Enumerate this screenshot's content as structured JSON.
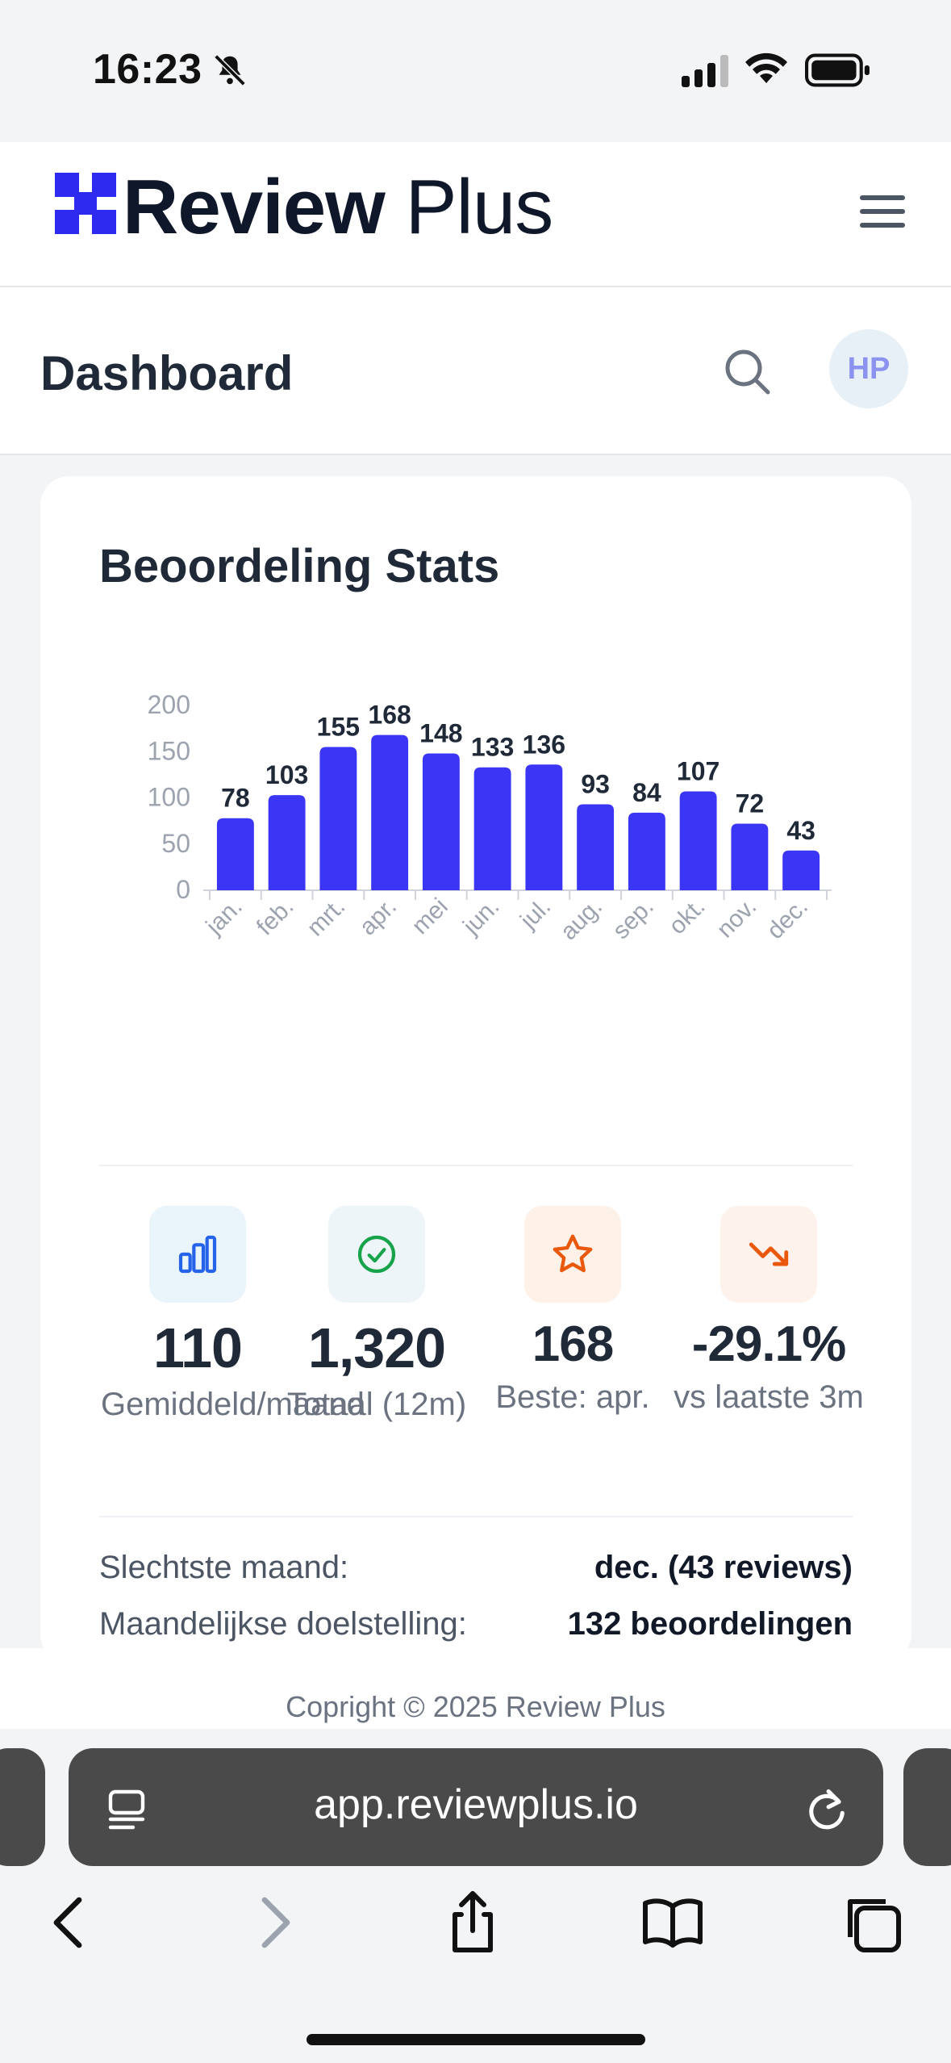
{
  "status_bar": {
    "time": "16:23"
  },
  "header": {
    "logo_bold": "Review",
    "logo_light": " Plus"
  },
  "page": {
    "title": "Dashboard",
    "avatar_initials": "HP"
  },
  "card": {
    "title": "Beoordeling Stats",
    "stats": [
      {
        "icon": "bar-chart-icon",
        "value": "110",
        "label": "Gemiddeld/maand"
      },
      {
        "icon": "check-circle-icon",
        "value": "1,320",
        "label": "Totaal (12m)"
      },
      {
        "icon": "star-icon",
        "value": "168",
        "label": "Beste: apr."
      },
      {
        "icon": "trend-down-icon",
        "value": "-29.1%",
        "label": "vs laatste 3m"
      }
    ],
    "summary": [
      {
        "key": "Slechtste maand:",
        "value": "dec. (43 reviews)"
      },
      {
        "key": "Maandelijkse doelstelling:",
        "value": "132 beoordelingen"
      }
    ]
  },
  "chart_data": {
    "type": "bar",
    "categories": [
      "jan.",
      "feb.",
      "mrt.",
      "apr.",
      "mei",
      "jun.",
      "jul.",
      "aug.",
      "sep.",
      "okt.",
      "nov.",
      "dec."
    ],
    "values": [
      78,
      103,
      155,
      168,
      148,
      133,
      136,
      93,
      84,
      107,
      72,
      43
    ],
    "ylim": [
      0,
      200
    ],
    "yticks": [
      0,
      50,
      100,
      150,
      200
    ],
    "bar_color": "#3b35f5",
    "data_labels": true,
    "grid": false
  },
  "footer": {
    "copyright": "Copright © 2025 Review Plus"
  },
  "browser": {
    "url": "app.reviewplus.io"
  },
  "colors": {
    "brand": "#2f2af0",
    "success": "#16a34a",
    "warning": "#ea580c",
    "muted": "#9ca3af"
  }
}
